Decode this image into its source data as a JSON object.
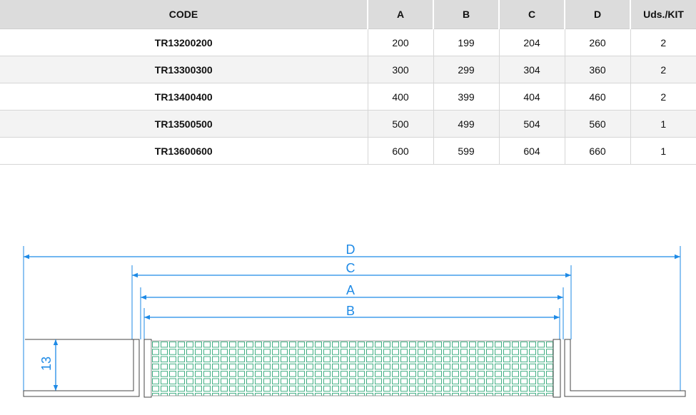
{
  "table": {
    "header": [
      "CODE",
      "A",
      "B",
      "C",
      "D",
      "Uds./KIT"
    ],
    "rows": [
      [
        "TR13200200",
        "200",
        "199",
        "204",
        "260",
        "2"
      ],
      [
        "TR13300300",
        "300",
        "299",
        "304",
        "360",
        "2"
      ],
      [
        "TR13400400",
        "400",
        "399",
        "404",
        "460",
        "2"
      ],
      [
        "TR13500500",
        "500",
        "499",
        "504",
        "560",
        "1"
      ],
      [
        "TR13600600",
        "600",
        "599",
        "604",
        "660",
        "1"
      ]
    ]
  },
  "diagram": {
    "labels": {
      "d": "D",
      "c": "C",
      "a": "A",
      "b": "B",
      "height": "13"
    }
  }
}
